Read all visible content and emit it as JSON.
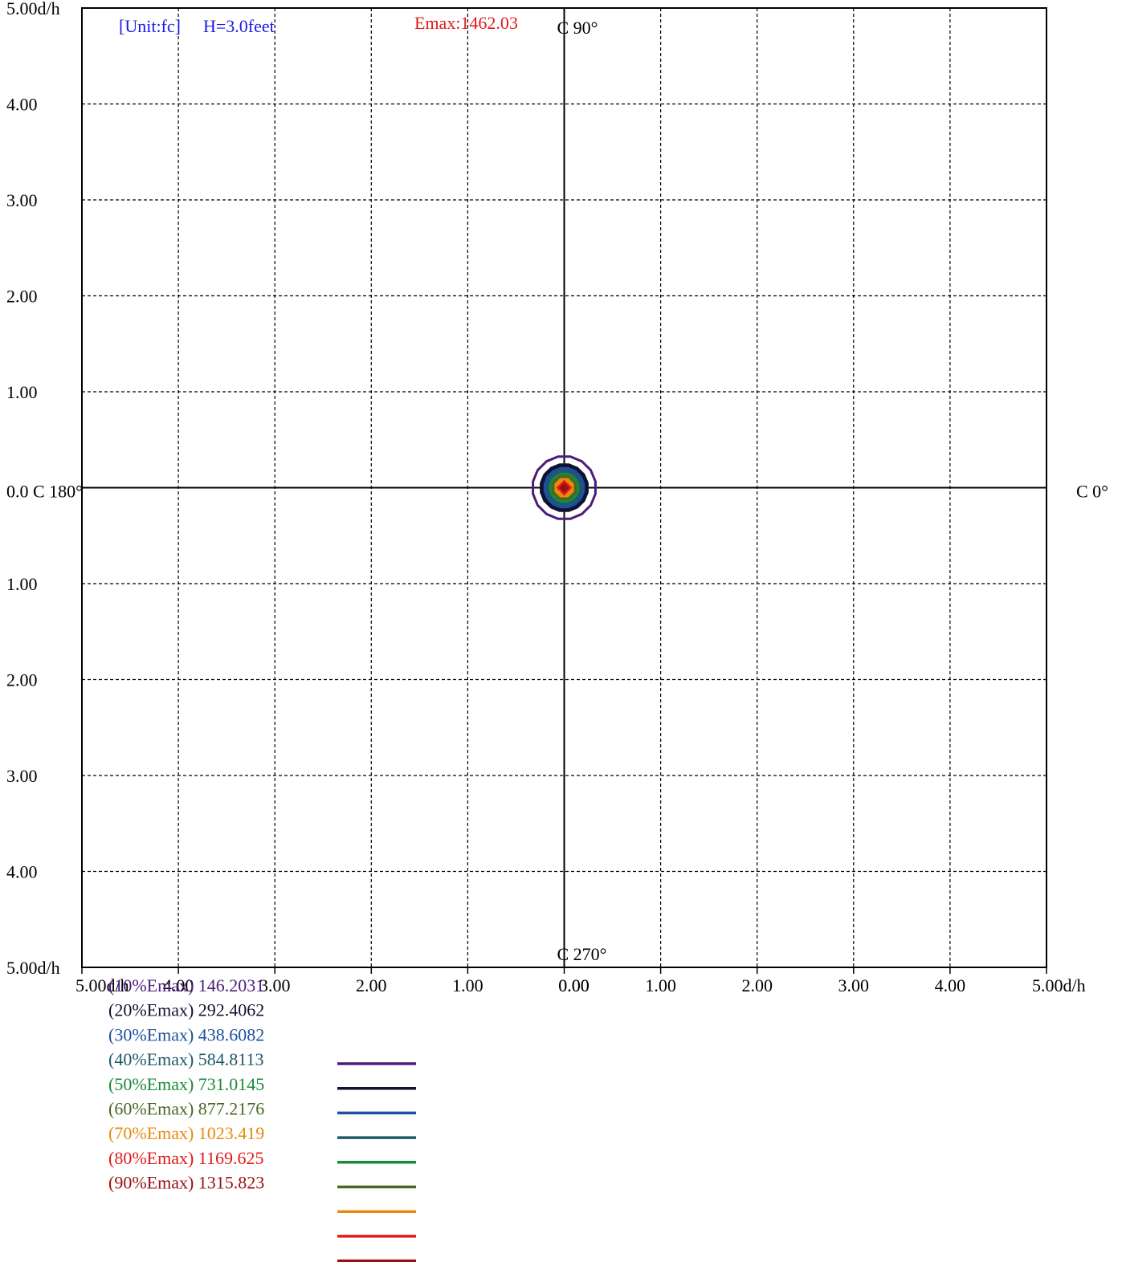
{
  "chart_data": {
    "type": "contour",
    "unit_label": "[Unit:fc]",
    "height_label": "H=3.0feet",
    "emax_label": "Emax:1462.03",
    "emax": 1462.03,
    "direction_labels": {
      "top": "C 90°",
      "bottom": "C 270°",
      "left": "0.0 C 180°",
      "right": "C 0°"
    },
    "x_range": [
      -5,
      5
    ],
    "y_range": [
      -5,
      5
    ],
    "x_tick_labels": [
      "5.00d/h",
      "4.00",
      "3.00",
      "2.00",
      "1.00",
      "0.00",
      "0.00",
      "1.00",
      "2.00",
      "3.00",
      "4.00",
      "5.00d/h"
    ],
    "y_tick_labels_top": [
      "5.00d/h",
      "4.00",
      "3.00",
      "2.00",
      "1.00"
    ],
    "y_tick_labels_bottom": [
      "1.00",
      "2.00",
      "3.00",
      "4.00",
      "5.00d/h"
    ],
    "grid": true,
    "levels": [
      {
        "label": "(10%Emax)",
        "value": "146.2031",
        "color": "#4b1c7a",
        "radius": 0.33
      },
      {
        "label": "(20%Emax)",
        "value": "292.4062",
        "color": "#111133",
        "radius": 0.25
      },
      {
        "label": "(30%Emax)",
        "value": "438.6082",
        "color": "#1d4fa0",
        "radius": 0.21
      },
      {
        "label": "(40%Emax)",
        "value": "584.8113",
        "color": "#1f5a6a",
        "radius": 0.18
      },
      {
        "label": "(50%Emax)",
        "value": "731.0145",
        "color": "#1a8a3a",
        "radius": 0.15
      },
      {
        "label": "(60%Emax)",
        "value": "877.2176",
        "color": "#4a6620",
        "radius": 0.13
      },
      {
        "label": "(70%Emax)",
        "value": "1023.419",
        "color": "#e88a10",
        "radius": 0.1
      },
      {
        "label": "(80%Emax)",
        "value": "1169.625",
        "color": "#e21a1a",
        "radius": 0.07
      },
      {
        "label": "(90%Emax)",
        "value": "1315.823",
        "color": "#9a1010",
        "radius": 0.04
      }
    ]
  }
}
